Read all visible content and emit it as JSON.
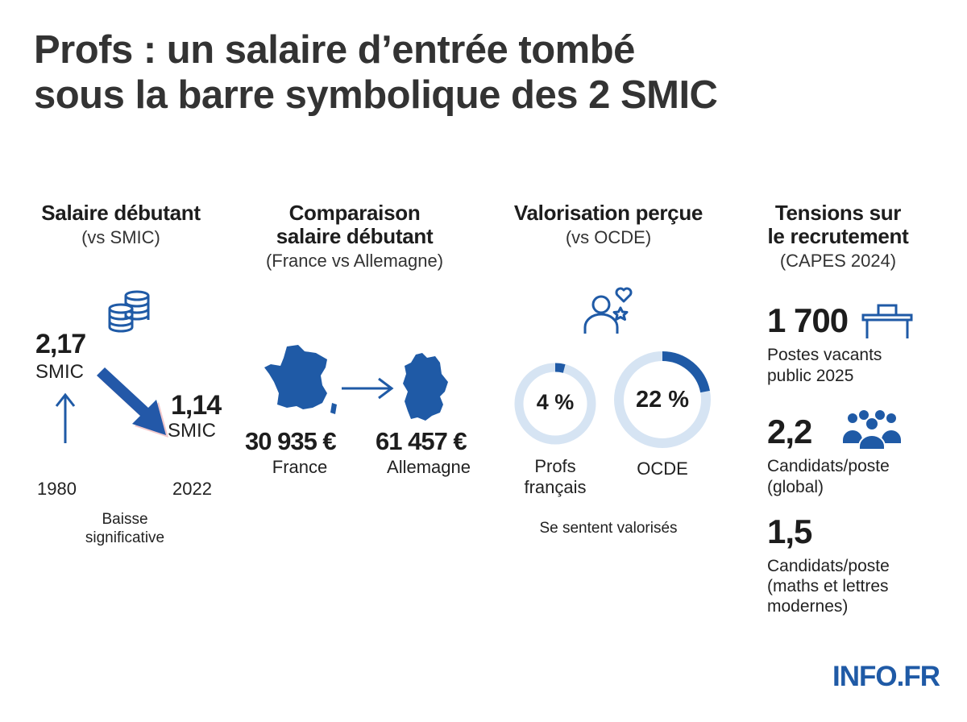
{
  "title": {
    "line1": "Profs : un salaire d’entrée tombé",
    "line2": "sous la barre symbolique des 2 SMIC"
  },
  "col1": {
    "heading": "Salaire débutant",
    "subheading": "(vs SMIC)",
    "value_1980": "2,17",
    "unit_1980": "SMIC",
    "value_2022": "1,14",
    "unit_2022": "SMIC",
    "year_start": "1980",
    "year_end": "2022",
    "caption_line1": "Baisse",
    "caption_line2": "significative",
    "icon": "coins-stack-icon"
  },
  "col2": {
    "heading_line1": "Comparaison",
    "heading_line2": "salaire débutant",
    "subheading": "(France vs Allemagne)",
    "france_amount": "30 935 €",
    "france_label": "France",
    "germany_amount": "61 457 €",
    "germany_label": "Allemagne",
    "map_color": "#1f5aa6"
  },
  "col3": {
    "heading": "Valorisation perçue",
    "subheading": "(vs OCDE)",
    "france_pct_label": "4 %",
    "france_pct": 4,
    "france_label_line1": "Profs",
    "france_label_line2": "français",
    "ocde_pct_label": "22 %",
    "ocde_pct": 22,
    "ocde_label": "OCDE",
    "caption": "Se sentent valorisés",
    "ring_fill_color": "#1f5aa6",
    "ring_track_color": "#d6e4f3",
    "icon": "person-heart-star-icon"
  },
  "col4": {
    "heading_line1": "Tensions sur",
    "heading_line2": "le recrutement",
    "subheading": "(CAPES 2024)",
    "stat1_value": "1 700",
    "stat1_line1": "Postes vacants",
    "stat1_line2": "public 2025",
    "stat2_value": "2,2",
    "stat2_line1": "Candidats/poste",
    "stat2_line2": "(global)",
    "stat3_value": "1,5",
    "stat3_line1": "Candidats/poste",
    "stat3_line2": "(maths et lettres",
    "stat3_line3": "modernes)",
    "icon1": "desk-icon",
    "icon2": "group-people-icon"
  },
  "brand": {
    "logo": "INFO.FR",
    "color": "#1f5aa6"
  }
}
